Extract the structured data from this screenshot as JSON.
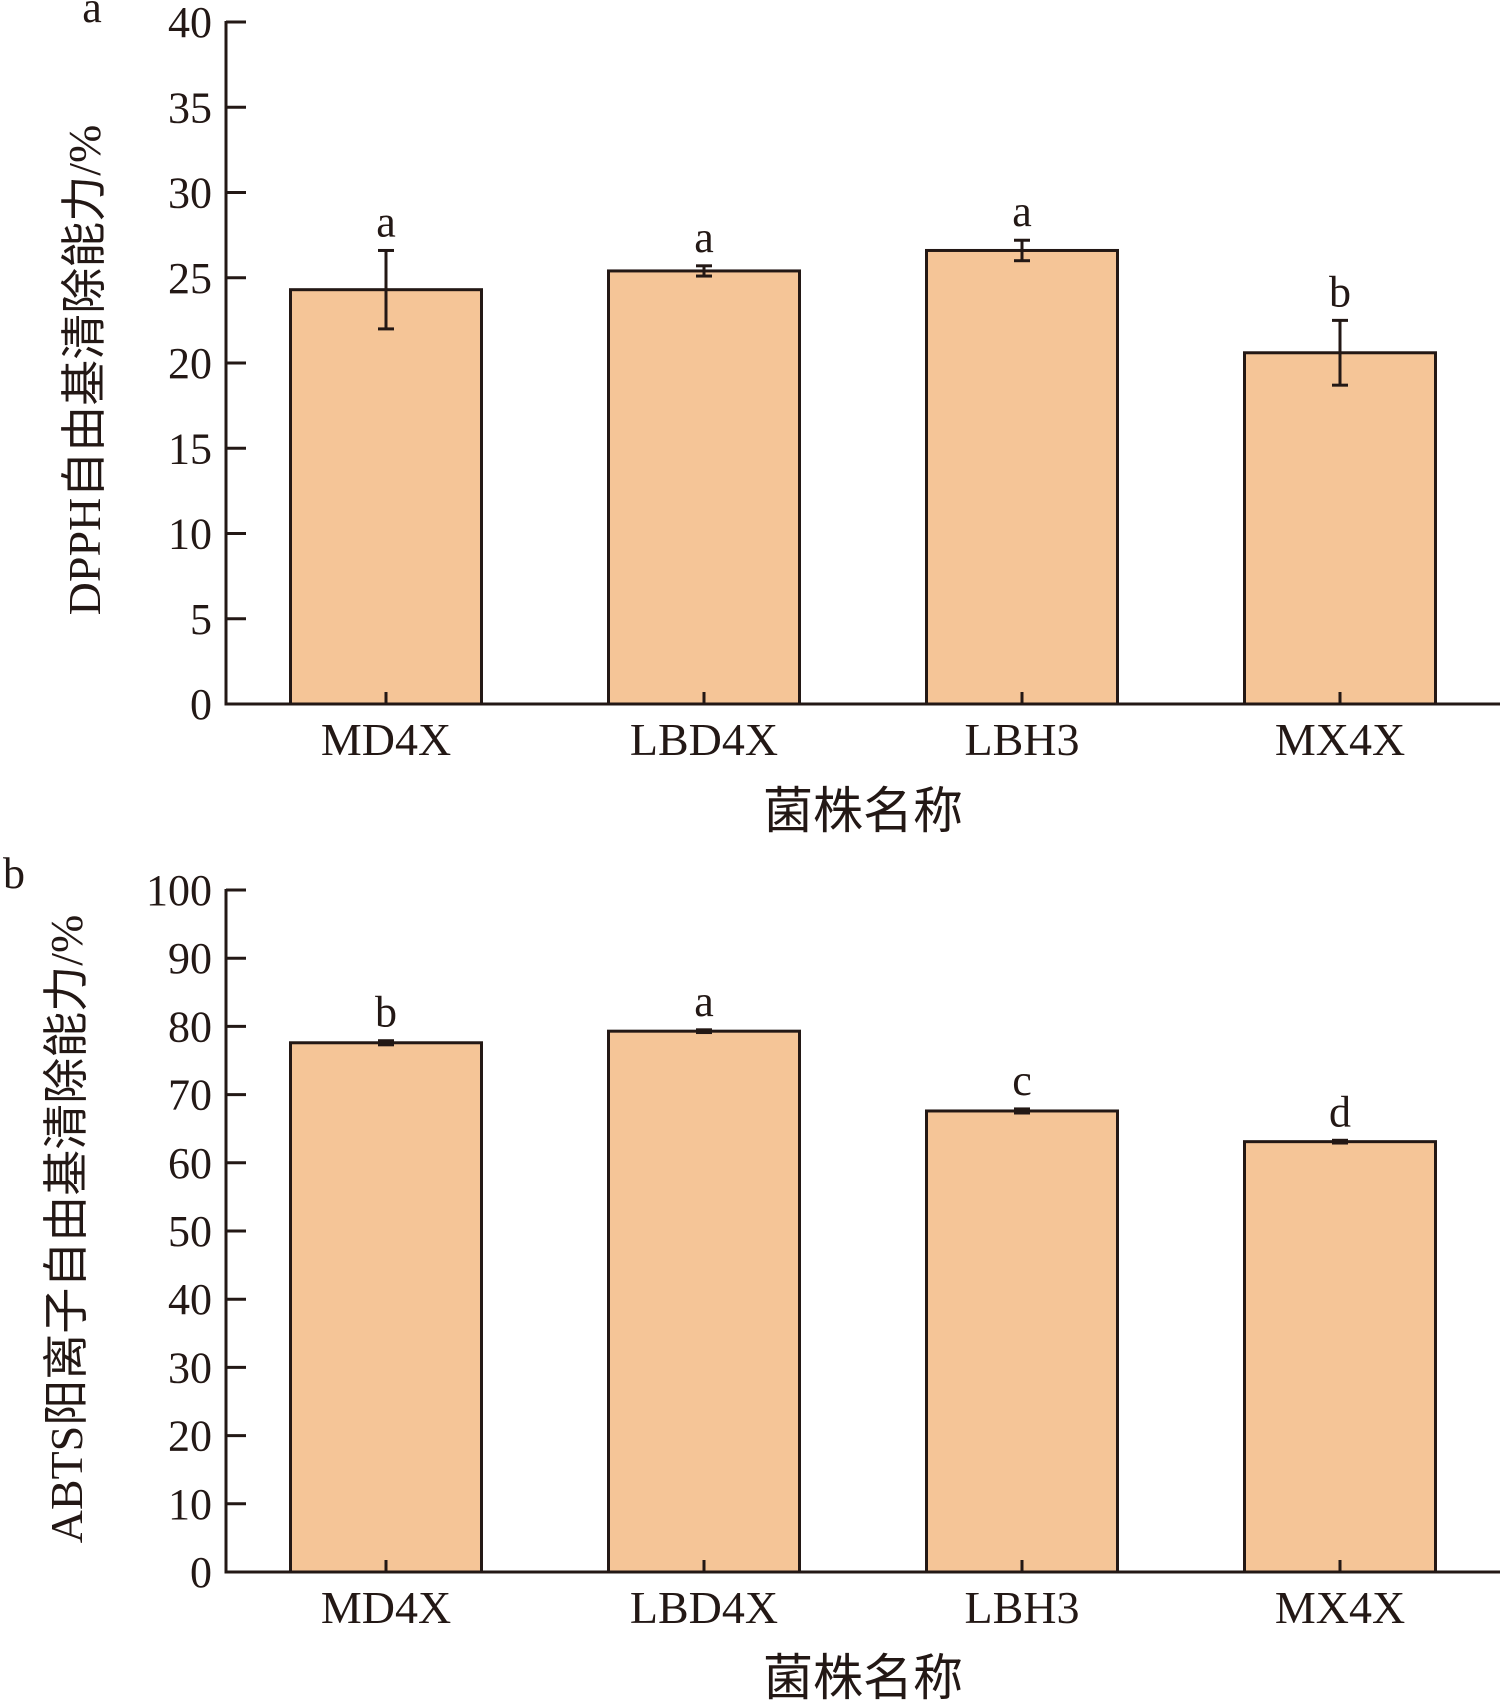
{
  "colors": {
    "bar": "#F5C597",
    "stroke": "#231815"
  },
  "chart_data": [
    {
      "type": "bar",
      "panel_label": "a",
      "categories": [
        "MD4X",
        "LBD4X",
        "LBH3",
        "MX4X"
      ],
      "values": [
        24.3,
        25.4,
        26.6,
        20.6
      ],
      "errors": [
        2.3,
        0.3,
        0.6,
        1.9
      ],
      "significance": [
        "a",
        "a",
        "a",
        "b"
      ],
      "xlabel": "菌株名称",
      "ylabel": "DPPH自由基清除能力/%",
      "ylim": [
        0,
        40
      ],
      "yticks": [
        0,
        5,
        10,
        15,
        20,
        25,
        30,
        35,
        40
      ]
    },
    {
      "type": "bar",
      "panel_label": "b",
      "categories": [
        "MD4X",
        "LBD4X",
        "LBH3",
        "MX4X"
      ],
      "values": [
        77.6,
        79.3,
        67.6,
        63.1
      ],
      "errors": [
        0.3,
        0.2,
        0.3,
        0.2
      ],
      "significance": [
        "b",
        "a",
        "c",
        "d"
      ],
      "xlabel": "菌株名称",
      "ylabel": "ABTS阳离子自由基清除能力/%",
      "ylim": [
        0,
        100
      ],
      "yticks": [
        0,
        10,
        20,
        30,
        40,
        50,
        60,
        70,
        80,
        90,
        100
      ]
    }
  ]
}
